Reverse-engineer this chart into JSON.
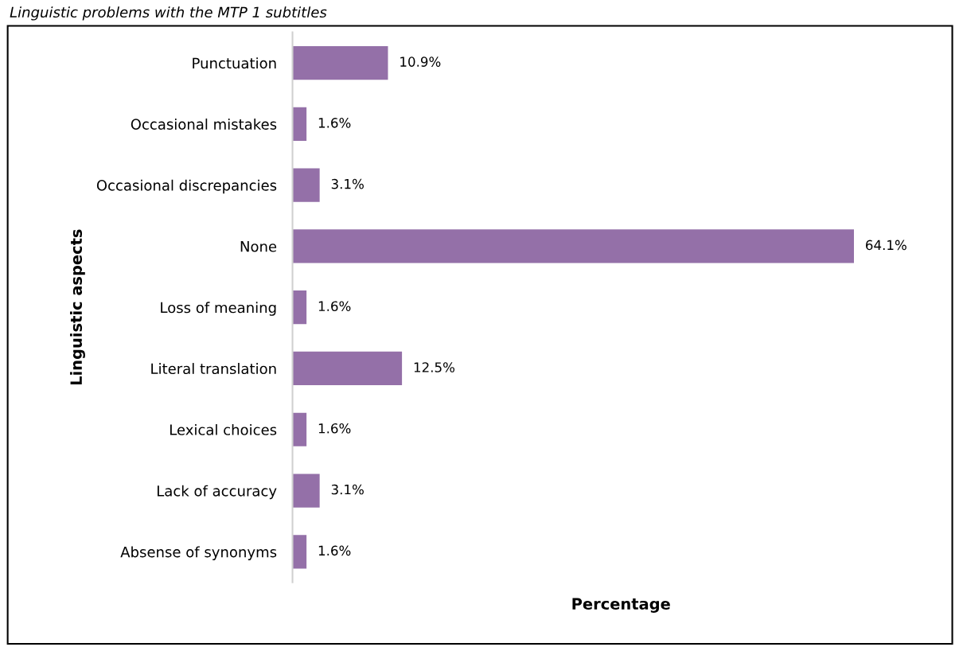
{
  "chart_data": {
    "type": "bar",
    "orientation": "horizontal",
    "title": "Linguistic problems with the MTP 1 subtitles",
    "xlabel": "Percentage",
    "ylabel": "Linguistic aspects",
    "categories": [
      "Punctuation",
      "Occasional mistakes",
      "Occasional discrepancies",
      "None",
      "Loss of meaning",
      "Literal translation",
      "Lexical choices",
      "Lack of accuracy",
      "Absense of synonyms"
    ],
    "values": [
      10.9,
      1.6,
      3.1,
      64.1,
      1.6,
      12.5,
      1.6,
      3.1,
      1.6
    ],
    "value_labels": [
      "10.9%",
      "1.6%",
      "3.1%",
      "64.1%",
      "1.6%",
      "12.5%",
      "1.6%",
      "3.1%",
      "1.6%"
    ],
    "color": "#9470a8",
    "xlim": [
      0,
      75
    ],
    "grid": false,
    "legend": false
  }
}
